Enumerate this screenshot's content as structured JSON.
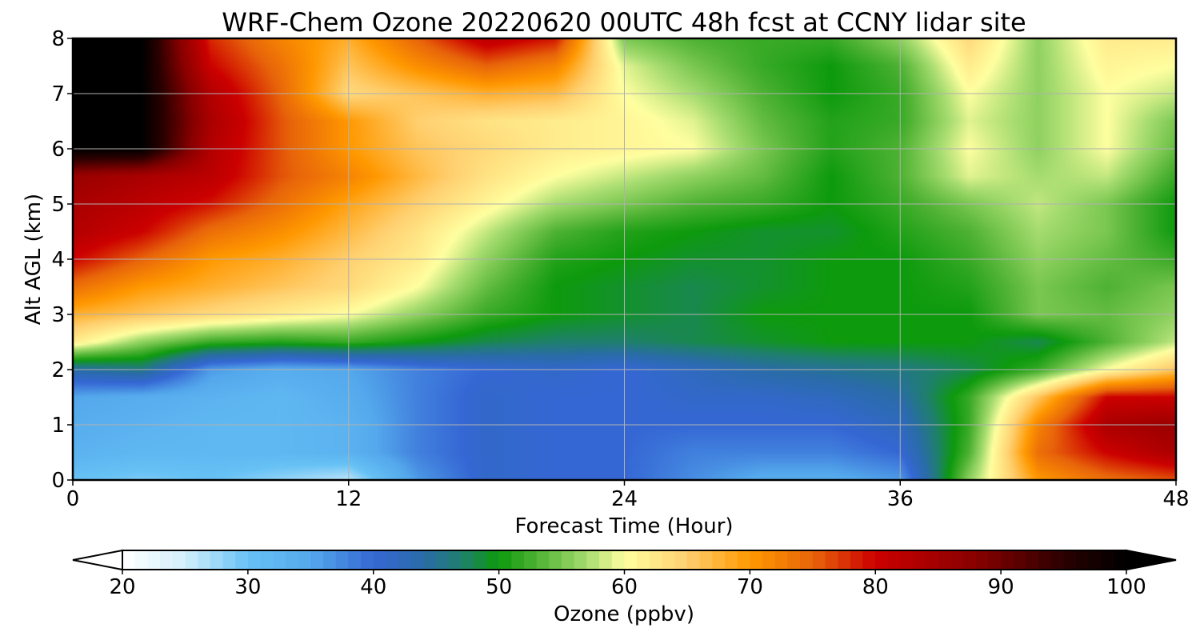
{
  "chart_data": {
    "type": "heatmap",
    "title": "WRF-Chem Ozone  20220620 00UTC 48h fcst at CCNY lidar site",
    "xlabel": "Forecast Time (Hour)",
    "ylabel": "Alt AGL (km)",
    "xlim": [
      0,
      48
    ],
    "ylim": [
      0,
      8
    ],
    "xticks": [
      0,
      12,
      24,
      36,
      48
    ],
    "yticks": [
      0,
      1,
      2,
      3,
      4,
      5,
      6,
      7,
      8
    ],
    "grid": true,
    "x": [
      0,
      3,
      6,
      9,
      12,
      15,
      18,
      21,
      24,
      27,
      30,
      33,
      36,
      39,
      42,
      45,
      48
    ],
    "y": [
      0,
      0.5,
      1,
      1.5,
      2,
      2.5,
      3,
      3.5,
      4,
      4.5,
      5,
      5.5,
      6,
      6.5,
      7,
      7.5,
      8
    ],
    "z": [
      [
        30,
        29,
        30,
        28,
        26,
        36,
        41,
        40,
        40,
        37,
        34,
        34,
        36,
        56,
        70,
        74,
        76
      ],
      [
        33,
        32,
        32,
        32,
        33,
        38,
        41,
        40,
        40,
        38,
        38,
        38,
        40,
        53,
        74,
        80,
        84
      ],
      [
        34,
        33,
        32,
        32,
        33,
        38,
        41,
        40,
        40,
        40,
        40,
        40,
        42,
        52,
        72,
        84,
        86
      ],
      [
        35,
        34,
        33,
        32,
        34,
        38,
        41,
        40,
        40,
        41,
        41,
        42,
        44,
        52,
        66,
        80,
        80
      ],
      [
        44,
        46,
        36,
        34,
        35,
        38,
        40,
        41,
        40,
        42,
        44,
        45,
        46,
        48,
        52,
        60,
        66
      ],
      [
        62,
        56,
        52,
        51,
        52,
        50,
        48,
        47,
        47,
        48,
        49,
        50,
        50,
        50,
        48,
        53,
        58
      ],
      [
        68,
        66,
        64,
        62,
        60,
        56,
        52,
        50,
        49,
        48,
        50,
        50,
        50,
        50,
        55,
        54,
        56
      ],
      [
        74,
        70,
        68,
        66,
        64,
        60,
        54,
        50,
        49,
        48,
        49,
        50,
        50,
        51,
        55,
        53,
        55
      ],
      [
        80,
        75,
        70,
        68,
        65,
        62,
        56,
        51,
        50,
        49,
        49,
        50,
        50,
        52,
        56,
        54,
        52
      ],
      [
        83,
        80,
        74,
        71,
        67,
        63,
        58,
        53,
        51,
        50,
        49,
        49,
        51,
        53,
        57,
        55,
        50
      ],
      [
        84,
        82,
        79,
        74,
        69,
        65,
        61,
        57,
        55,
        53,
        52,
        50,
        52,
        55,
        58,
        55,
        50
      ],
      [
        86,
        84,
        82,
        76,
        72,
        67,
        63,
        60,
        58,
        56,
        54,
        50,
        53,
        59,
        57,
        58,
        52
      ],
      [
        100,
        100,
        83,
        76,
        70,
        66,
        64,
        62,
        61,
        60,
        55,
        51,
        53,
        60,
        56,
        60,
        54
      ],
      [
        100,
        100,
        84,
        76,
        70,
        65,
        63,
        62,
        61,
        59,
        54,
        51,
        52,
        59,
        56,
        60,
        55
      ],
      [
        100,
        100,
        83,
        75,
        64,
        66,
        68,
        67,
        60,
        57,
        53,
        50,
        52,
        60,
        56,
        60,
        58
      ],
      [
        100,
        100,
        80,
        74,
        66,
        71,
        75,
        72,
        59,
        55,
        52,
        50,
        53,
        62,
        56,
        61,
        60
      ],
      [
        100,
        100,
        78,
        72,
        68,
        75,
        82,
        79,
        55,
        53,
        52,
        52,
        56,
        64,
        56,
        62,
        62
      ]
    ],
    "colorbar": {
      "label": "Ozone  (ppbv)",
      "min": 20,
      "max": 100,
      "ticks": [
        20,
        30,
        40,
        50,
        60,
        70,
        80,
        90,
        100
      ],
      "extend": "both",
      "colors": [
        {
          "value": 20,
          "color": "#ffffff"
        },
        {
          "value": 25,
          "color": "#d2eefc"
        },
        {
          "value": 30,
          "color": "#67c2f5"
        },
        {
          "value": 35,
          "color": "#54a8ec"
        },
        {
          "value": 40,
          "color": "#3567d4"
        },
        {
          "value": 44,
          "color": "#2a6ca8"
        },
        {
          "value": 47,
          "color": "#1f7f6e"
        },
        {
          "value": 50,
          "color": "#0d9a0d"
        },
        {
          "value": 53,
          "color": "#4eb233"
        },
        {
          "value": 57,
          "color": "#a6dc70"
        },
        {
          "value": 60,
          "color": "#ffffa0"
        },
        {
          "value": 65,
          "color": "#ffd070"
        },
        {
          "value": 70,
          "color": "#ff9800"
        },
        {
          "value": 75,
          "color": "#e8650a"
        },
        {
          "value": 80,
          "color": "#cc0000"
        },
        {
          "value": 88,
          "color": "#880000"
        },
        {
          "value": 95,
          "color": "#2a0000"
        },
        {
          "value": 100,
          "color": "#000000"
        }
      ]
    }
  }
}
